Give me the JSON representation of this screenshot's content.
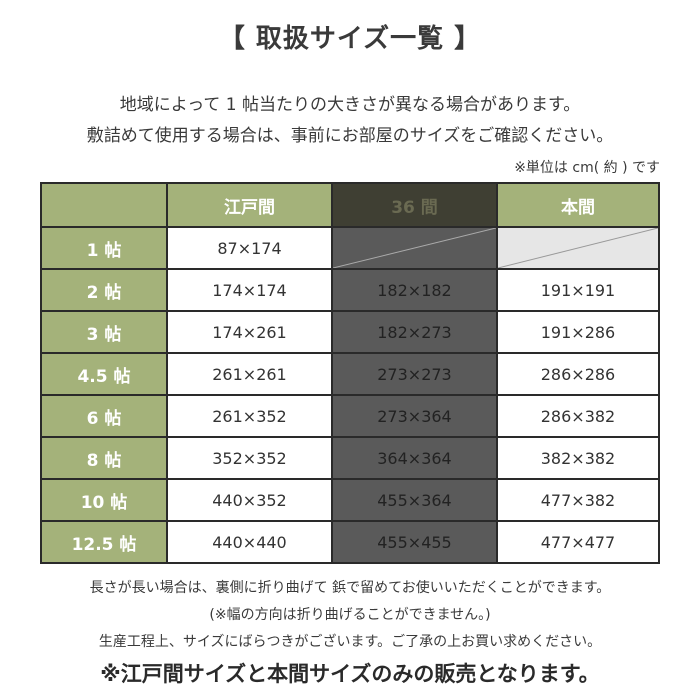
{
  "title": "【 取扱サイズ一覧 】",
  "intro": [
    "地域によって 1 帖当たりの大きさが異なる場合があります。",
    "敷詰めて使用する場合は、事前にお部屋のサイズをご確認ください。"
  ],
  "unit_note": "※単位は cm( 約 ) です",
  "table": {
    "headers": [
      "江戸間",
      "36 間",
      "本間"
    ],
    "rows": [
      {
        "label": "1 帖",
        "edo": "87×174",
        "san": "",
        "hon": ""
      },
      {
        "label": "2 帖",
        "edo": "174×174",
        "san": "182×182",
        "hon": "191×191"
      },
      {
        "label": "3 帖",
        "edo": "174×261",
        "san": "182×273",
        "hon": "191×286"
      },
      {
        "label": "4.5 帖",
        "edo": "261×261",
        "san": "273×273",
        "hon": "286×286"
      },
      {
        "label": "6 帖",
        "edo": "261×352",
        "san": "273×364",
        "hon": "286×382"
      },
      {
        "label": "8 帖",
        "edo": "352×352",
        "san": "364×364",
        "hon": "382×382"
      },
      {
        "label": "10 帖",
        "edo": "440×352",
        "san": "455×364",
        "hon": "477×382"
      },
      {
        "label": "12.5 帖",
        "edo": "440×440",
        "san": "455×455",
        "hon": "477×477"
      }
    ]
  },
  "notes": [
    "長さが長い場合は、裏側に折り曲げて 鋲で留めてお使いいただくことができます。",
    "(※幅の方向は折り曲げることができません。)",
    "生産工程上、サイズにばらつきがございます。ご了承の上お買い求めください。"
  ],
  "final_note": "※江戸間サイズと本間サイズのみの販売となります。",
  "colors": {
    "header_green": "#a4b27a",
    "dark_column": "#5a5a5a",
    "dark_header": "#3f3f33",
    "border": "#2a2a2a"
  }
}
